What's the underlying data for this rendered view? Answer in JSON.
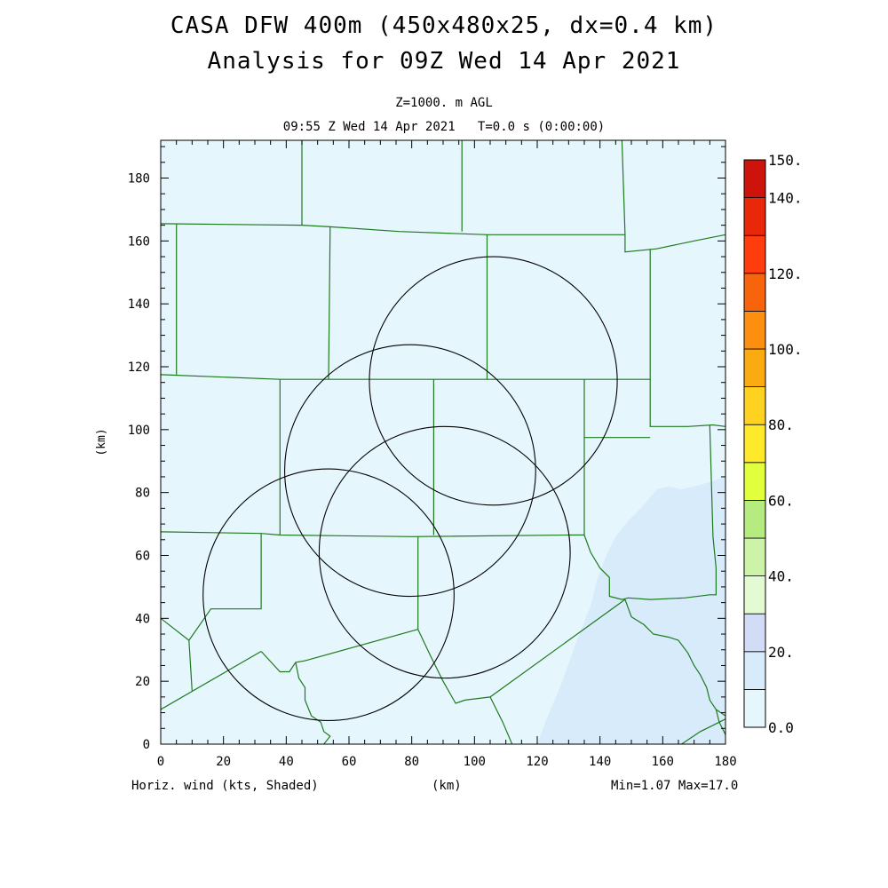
{
  "header": {
    "title_line1": "CASA DFW 400m (450x480x25, dx=0.4 km)",
    "title_line2": "Analysis for 09Z Wed 14 Apr 2021",
    "level": "Z=1000. m AGL",
    "time": "09:55 Z Wed 14 Apr 2021   T=0.0 s (0:00:00)"
  },
  "footer": {
    "field": "Horiz. wind (kts, Shaded)",
    "xunit": "(km)",
    "minmax": "Min=1.07 Max=17.0"
  },
  "colors": {
    "county_lines": "#1e7a1e",
    "range_rings": "#000000",
    "background_field": "#e6f6fd",
    "higher_field": "#d7ebfb"
  },
  "chart_data": {
    "type": "heatmap",
    "field": "Horiz. wind (kts, Shaded)",
    "xlabel": "(km)",
    "ylabel": "(km)",
    "xlim": [
      0,
      180
    ],
    "ylim": [
      0,
      192
    ],
    "xticks": [
      0,
      20,
      40,
      60,
      80,
      100,
      120,
      140,
      160,
      180
    ],
    "yticks": [
      0,
      20,
      40,
      60,
      80,
      100,
      120,
      140,
      160,
      180
    ],
    "xtick_labels": [
      "0",
      "20",
      "40",
      "60",
      "80",
      "100",
      "120",
      "140",
      "160",
      "180"
    ],
    "ytick_labels": [
      "0",
      "20",
      "40",
      "60",
      "80",
      "100",
      "120",
      "140",
      "160",
      "180"
    ],
    "min": 1.07,
    "max": 17.0,
    "colorbar": {
      "levels": [
        0,
        10,
        20,
        30,
        40,
        50,
        60,
        70,
        80,
        90,
        100,
        110,
        120,
        130,
        140,
        150
      ],
      "labels": [
        {
          "value": 0,
          "text": "0.0"
        },
        {
          "value": 20,
          "text": "20."
        },
        {
          "value": 40,
          "text": "40."
        },
        {
          "value": 60,
          "text": "60."
        },
        {
          "value": 80,
          "text": "80."
        },
        {
          "value": 100,
          "text": "100."
        },
        {
          "value": 120,
          "text": "120."
        },
        {
          "value": 140,
          "text": "140."
        },
        {
          "value": 150,
          "text": "150."
        }
      ],
      "colors": [
        "#e6f6fd",
        "#d7ebfb",
        "#d2dcf6",
        "#e4fad3",
        "#ccf3a8",
        "#b6eb7f",
        "#e1ff3c",
        "#ffe92b",
        "#ffd221",
        "#fbab12",
        "#fd8f10",
        "#f8640c",
        "#ff3c0d",
        "#e92709",
        "#cd130c",
        "#ad0000"
      ]
    },
    "shaded_regions": [
      {
        "level": "10-20",
        "points": [
          [
            120,
            0
          ],
          [
            123,
            8
          ],
          [
            128,
            20
          ],
          [
            133,
            34
          ],
          [
            137,
            44
          ],
          [
            139,
            52
          ],
          [
            142,
            60
          ],
          [
            145,
            66
          ],
          [
            149,
            71
          ],
          [
            154,
            76
          ],
          [
            158,
            81
          ],
          [
            162,
            82
          ],
          [
            166,
            81
          ],
          [
            170,
            82
          ],
          [
            174,
            83
          ],
          [
            177,
            84
          ],
          [
            180,
            85
          ],
          [
            180,
            0
          ]
        ]
      }
    ],
    "range_rings": [
      {
        "center": [
          106.0,
          115.5
        ],
        "radius": 39.5
      },
      {
        "center": [
          79.5,
          87.0
        ],
        "radius": 40.0
      },
      {
        "center": [
          90.5,
          61.0
        ],
        "radius": 40.0
      },
      {
        "center": [
          53.5,
          47.5
        ],
        "radius": 40.0
      }
    ],
    "county_lines": [
      [
        [
          0,
          165.5
        ],
        [
          45,
          165
        ],
        [
          54,
          164.5
        ],
        [
          76,
          163
        ],
        [
          104,
          162
        ],
        [
          148,
          162
        ],
        [
          148,
          156.5
        ],
        [
          158,
          157.5
        ],
        [
          170,
          160
        ],
        [
          180,
          162
        ]
      ],
      [
        [
          0,
          117.5
        ],
        [
          38,
          116
        ],
        [
          76,
          116
        ],
        [
          104,
          116
        ],
        [
          130,
          116
        ],
        [
          156,
          116
        ]
      ],
      [
        [
          0,
          67.5
        ],
        [
          32,
          67
        ],
        [
          38,
          66.5
        ],
        [
          80,
          66
        ],
        [
          130,
          66.5
        ],
        [
          135,
          66.5
        ]
      ],
      [
        [
          5,
          165.5
        ],
        [
          5,
          117.5
        ]
      ],
      [
        [
          45,
          192
        ],
        [
          45,
          165
        ]
      ],
      [
        [
          54,
          164.5
        ],
        [
          53.5,
          116
        ]
      ],
      [
        [
          96,
          192
        ],
        [
          96,
          163
        ]
      ],
      [
        [
          104,
          162
        ],
        [
          104,
          116
        ]
      ],
      [
        [
          147,
          192
        ],
        [
          148,
          162
        ]
      ],
      [
        [
          156,
          157.5
        ],
        [
          156,
          116
        ],
        [
          156,
          101
        ],
        [
          168,
          101
        ],
        [
          176,
          101.5
        ],
        [
          180,
          101
        ]
      ],
      [
        [
          38,
          116
        ],
        [
          38,
          66.5
        ]
      ],
      [
        [
          87,
          116
        ],
        [
          87,
          66.5
        ]
      ],
      [
        [
          135,
          116
        ],
        [
          135,
          97.5
        ],
        [
          156,
          97.5
        ]
      ],
      [
        [
          135,
          97.5
        ],
        [
          135,
          66.5
        ],
        [
          137,
          61
        ],
        [
          140,
          56
        ],
        [
          143,
          53
        ],
        [
          143,
          47
        ],
        [
          147,
          46
        ],
        [
          149,
          46.5
        ],
        [
          156,
          46
        ],
        [
          167,
          46.5
        ],
        [
          175,
          47.5
        ],
        [
          177,
          47.5
        ],
        [
          177,
          56
        ],
        [
          176,
          66
        ],
        [
          175,
          101.5
        ]
      ],
      [
        [
          32,
          67
        ],
        [
          32,
          43
        ],
        [
          16,
          43
        ],
        [
          9,
          33
        ],
        [
          0,
          40
        ]
      ],
      [
        [
          9,
          33
        ],
        [
          10,
          17
        ]
      ],
      [
        [
          32,
          29.5
        ],
        [
          0,
          11
        ]
      ],
      [
        [
          32,
          29.5
        ],
        [
          38,
          23
        ],
        [
          41,
          23
        ],
        [
          43,
          26
        ],
        [
          46,
          26.5
        ],
        [
          82,
          36.5
        ],
        [
          82,
          66
        ]
      ],
      [
        [
          43,
          26
        ],
        [
          44,
          21
        ],
        [
          46,
          18
        ],
        [
          46,
          14
        ],
        [
          48,
          9
        ],
        [
          51,
          7
        ],
        [
          52,
          4
        ],
        [
          54,
          2.5
        ],
        [
          52,
          0
        ]
      ],
      [
        [
          82,
          36.5
        ],
        [
          86,
          28
        ],
        [
          90,
          20
        ],
        [
          94,
          13
        ],
        [
          97,
          14
        ],
        [
          105,
          15
        ],
        [
          148,
          46
        ]
      ],
      [
        [
          105,
          15
        ],
        [
          109,
          7
        ],
        [
          112,
          0
        ]
      ],
      [
        [
          148,
          46
        ],
        [
          150,
          40.5
        ],
        [
          154,
          38
        ],
        [
          157,
          35
        ],
        [
          162,
          34
        ],
        [
          165,
          33
        ],
        [
          168,
          29
        ],
        [
          170,
          25
        ],
        [
          172,
          22
        ],
        [
          174,
          18
        ],
        [
          175,
          14
        ],
        [
          177,
          11
        ],
        [
          178,
          7
        ],
        [
          180,
          3
        ]
      ],
      [
        [
          180,
          8
        ],
        [
          176,
          6
        ],
        [
          172,
          4
        ],
        [
          166,
          0
        ]
      ],
      [
        [
          177,
          11
        ],
        [
          180,
          9
        ]
      ]
    ]
  }
}
